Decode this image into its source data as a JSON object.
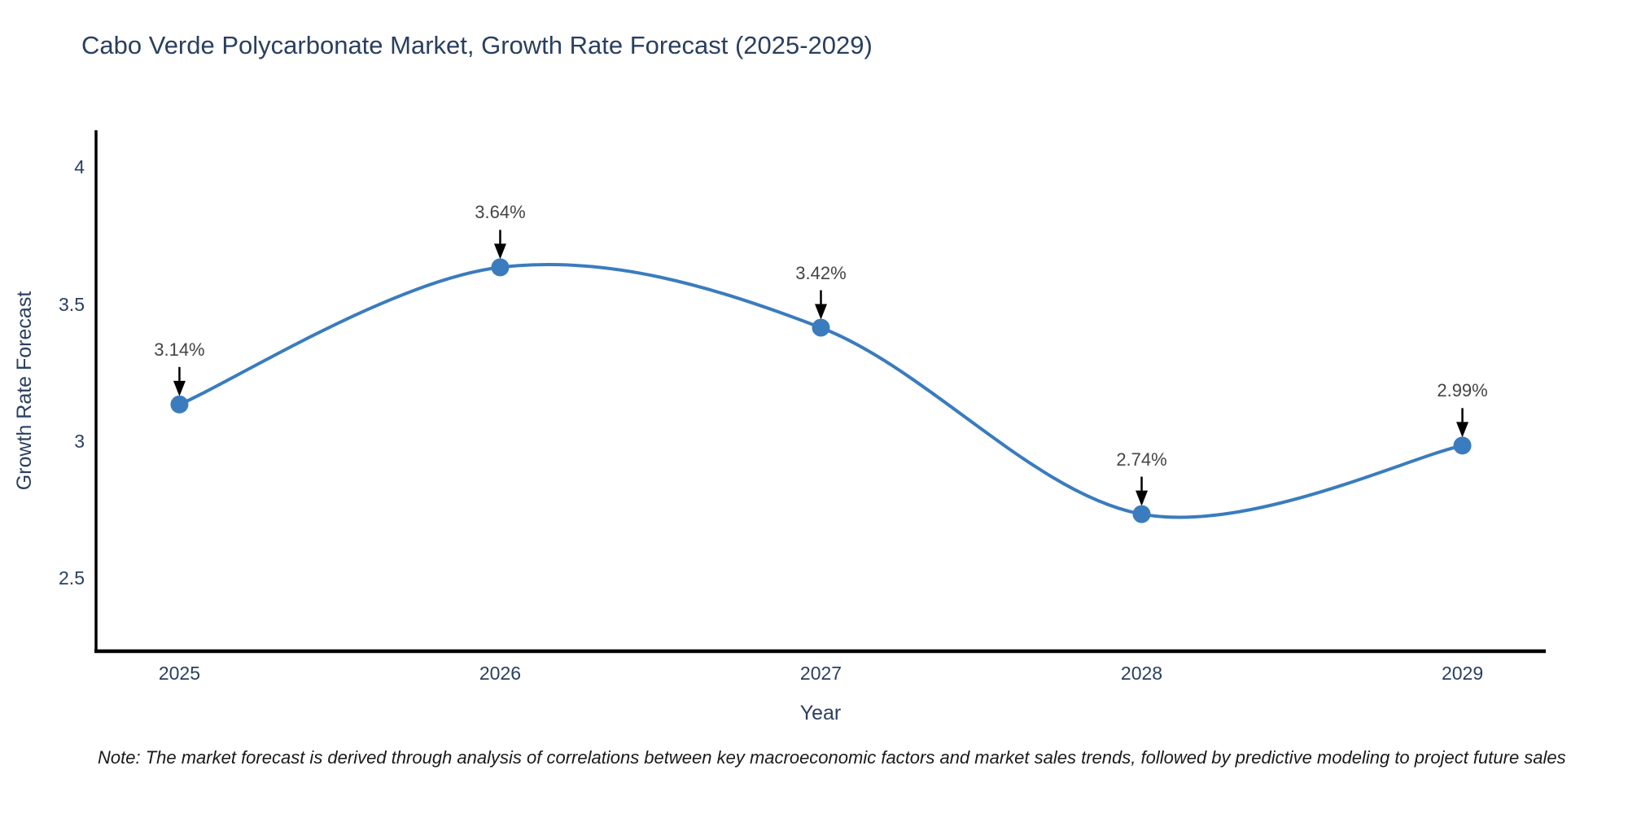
{
  "chart_data": {
    "type": "line",
    "title": "Cabo Verde Polycarbonate Market, Growth Rate Forecast (2025-2029)",
    "xlabel": "Year",
    "ylabel": "Growth Rate Forecast",
    "x": [
      2025,
      2026,
      2027,
      2028,
      2029
    ],
    "series": [
      {
        "name": "Growth Rate Forecast",
        "values": [
          3.14,
          3.64,
          3.42,
          2.74,
          2.99
        ]
      }
    ],
    "point_labels": [
      "3.14%",
      "3.64%",
      "3.42%",
      "2.74%",
      "2.99%"
    ],
    "x_tick_labels": [
      "2025",
      "2026",
      "2027",
      "2028",
      "2029"
    ],
    "y_ticks": [
      2.5,
      3,
      3.5,
      4
    ],
    "y_tick_labels": [
      "2.5",
      "3",
      "3.5",
      "4"
    ],
    "xlim": [
      2024.74,
      2029.26
    ],
    "ylim": [
      2.24,
      4.14
    ],
    "line_shape": "spline",
    "grid": false,
    "legend": "none",
    "colors": {
      "line": "#3a7cbd",
      "marker": "#3a7cbd",
      "axis": "#000000",
      "label_text": "#2a3f5f",
      "annotation_text": "#444444",
      "arrow": "#000000",
      "title": "#2a3f5f"
    }
  },
  "note": {
    "text": "Note: The market forecast is derived through analysis of correlations between key macroeconomic factors and market sales trends, followed by predictive modeling to project future sales"
  }
}
